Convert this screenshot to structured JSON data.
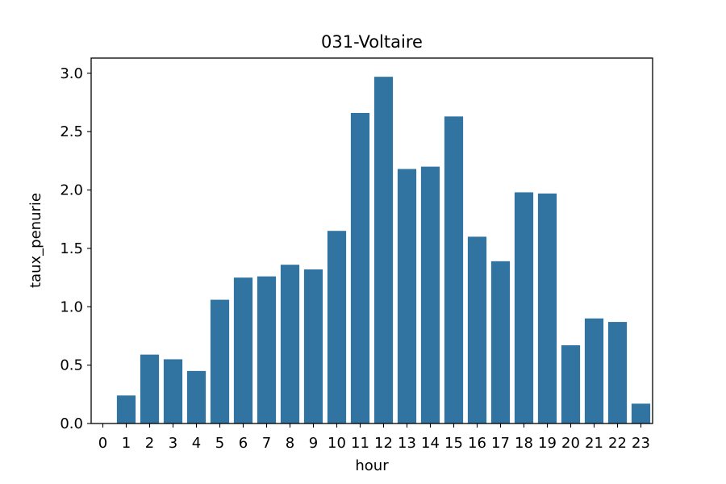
{
  "chart_data": {
    "type": "bar",
    "title": "031-Voltaire",
    "xlabel": "hour",
    "ylabel": "taux_penurie",
    "categories": [
      "0",
      "1",
      "2",
      "3",
      "4",
      "5",
      "6",
      "7",
      "8",
      "9",
      "10",
      "11",
      "12",
      "13",
      "14",
      "15",
      "16",
      "17",
      "18",
      "19",
      "20",
      "21",
      "22",
      "23"
    ],
    "values": [
      0.0,
      0.24,
      0.59,
      0.55,
      0.45,
      1.06,
      1.25,
      1.26,
      1.36,
      1.32,
      1.65,
      2.66,
      2.97,
      2.18,
      2.2,
      2.63,
      1.6,
      1.39,
      1.98,
      1.97,
      0.67,
      0.9,
      0.87,
      0.17
    ],
    "ylim": [
      0,
      3.13
    ],
    "yticks": [
      "0.0",
      "0.5",
      "1.0",
      "1.5",
      "2.0",
      "2.5",
      "3.0"
    ],
    "grid": false,
    "legend": "none",
    "bar_color": "#3274a1"
  }
}
